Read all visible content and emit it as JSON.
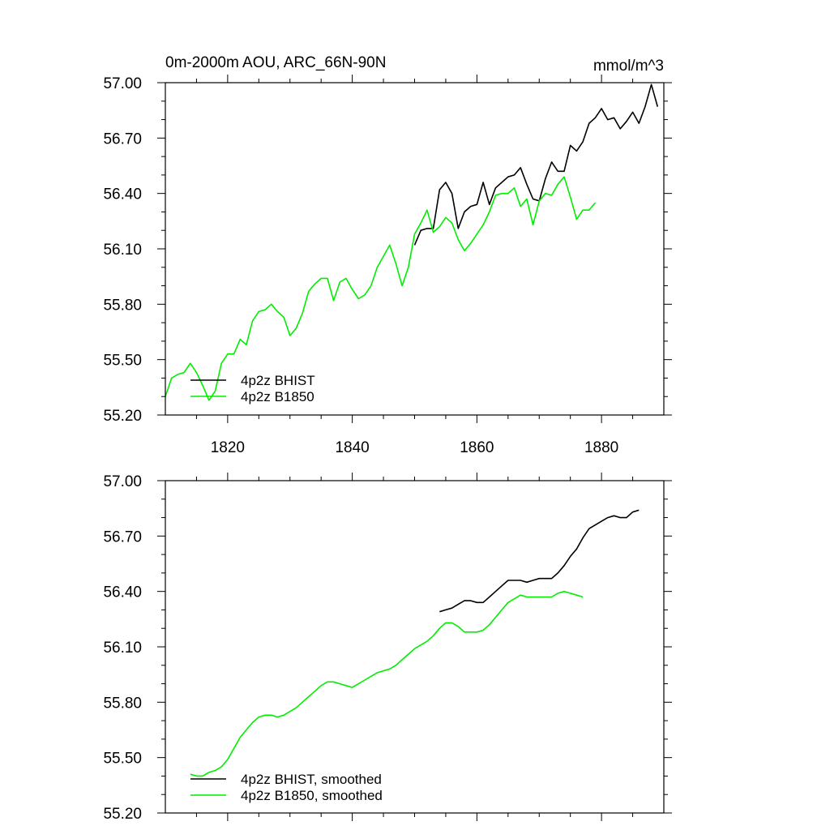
{
  "chart_data": [
    {
      "type": "line",
      "title": "0m-2000m AOU, ARC_66N-90N",
      "units": "mmol/m^3",
      "xlim": [
        1810,
        1890
      ],
      "ylim": [
        55.2,
        57.0
      ],
      "y_ticks": [
        "55.20",
        "55.50",
        "55.80",
        "56.10",
        "56.40",
        "56.70",
        "57.00"
      ],
      "x_ticks": [
        "1820",
        "1840",
        "1860",
        "1880"
      ],
      "legend_position": "bottom-left",
      "series": [
        {
          "name": "4p2z BHIST",
          "color": "#000000",
          "x": [
            1850,
            1851,
            1852,
            1853,
            1854,
            1855,
            1856,
            1857,
            1858,
            1859,
            1860,
            1861,
            1862,
            1863,
            1864,
            1865,
            1866,
            1867,
            1868,
            1869,
            1870,
            1871,
            1872,
            1873,
            1874,
            1875,
            1876,
            1877,
            1878,
            1879,
            1880,
            1881,
            1882,
            1883,
            1884,
            1885,
            1886,
            1887,
            1888,
            1889
          ],
          "y": [
            56.12,
            56.2,
            56.21,
            56.21,
            56.42,
            56.46,
            56.4,
            56.21,
            56.3,
            56.33,
            56.34,
            56.46,
            56.34,
            56.43,
            56.46,
            56.49,
            56.5,
            56.54,
            56.45,
            56.37,
            56.36,
            56.48,
            56.57,
            56.52,
            56.52,
            56.66,
            56.63,
            56.68,
            56.78,
            56.81,
            56.86,
            56.8,
            56.81,
            56.75,
            56.79,
            56.84,
            56.78,
            56.87,
            56.99,
            56.87
          ]
        },
        {
          "name": "4p2z B1850",
          "color": "#00ee00",
          "x": [
            1810,
            1811,
            1812,
            1813,
            1814,
            1815,
            1816,
            1817,
            1818,
            1819,
            1820,
            1821,
            1822,
            1823,
            1824,
            1825,
            1826,
            1827,
            1828,
            1829,
            1830,
            1831,
            1832,
            1833,
            1834,
            1835,
            1836,
            1837,
            1838,
            1839,
            1840,
            1841,
            1842,
            1843,
            1844,
            1845,
            1846,
            1847,
            1848,
            1849,
            1850,
            1851,
            1852,
            1853,
            1854,
            1855,
            1856,
            1857,
            1858,
            1859,
            1860,
            1861,
            1862,
            1863,
            1864,
            1865,
            1866,
            1867,
            1868,
            1869,
            1870,
            1871,
            1872,
            1873,
            1874,
            1875,
            1876,
            1877,
            1878,
            1879
          ],
          "y": [
            55.3,
            55.4,
            55.42,
            55.43,
            55.48,
            55.43,
            55.36,
            55.28,
            55.33,
            55.48,
            55.53,
            55.53,
            55.61,
            55.58,
            55.71,
            55.76,
            55.77,
            55.8,
            55.76,
            55.73,
            55.63,
            55.67,
            55.75,
            55.87,
            55.91,
            55.94,
            55.94,
            55.82,
            55.92,
            55.94,
            55.88,
            55.83,
            55.85,
            55.9,
            56.0,
            56.06,
            56.12,
            56.02,
            55.9,
            56.0,
            56.18,
            56.24,
            56.31,
            56.19,
            56.22,
            56.27,
            56.24,
            56.15,
            56.09,
            56.13,
            56.18,
            56.23,
            56.3,
            56.39,
            56.4,
            56.4,
            56.43,
            56.33,
            56.37,
            56.23,
            56.36,
            56.4,
            56.39,
            56.45,
            56.49,
            56.38,
            56.26,
            56.31,
            56.31,
            56.35
          ]
        }
      ]
    },
    {
      "type": "line",
      "xlim": [
        1810,
        1890
      ],
      "ylim": [
        55.2,
        57.0
      ],
      "y_ticks": [
        "55.20",
        "55.50",
        "55.80",
        "56.10",
        "56.40",
        "56.70",
        "57.00"
      ],
      "legend_position": "bottom-left",
      "series": [
        {
          "name": "4p2z BHIST, smoothed",
          "color": "#000000",
          "x": [
            1854,
            1855,
            1856,
            1857,
            1858,
            1859,
            1860,
            1861,
            1862,
            1863,
            1864,
            1865,
            1866,
            1867,
            1868,
            1869,
            1870,
            1871,
            1872,
            1873,
            1874,
            1875,
            1876,
            1877,
            1878,
            1879,
            1880,
            1881,
            1882,
            1883,
            1884,
            1885,
            1886
          ],
          "y": [
            56.29,
            56.3,
            56.31,
            56.33,
            56.35,
            56.35,
            56.34,
            56.34,
            56.37,
            56.4,
            56.43,
            56.46,
            56.46,
            56.46,
            56.45,
            56.46,
            56.47,
            56.47,
            56.47,
            56.5,
            56.54,
            56.59,
            56.63,
            56.69,
            56.74,
            56.76,
            56.78,
            56.8,
            56.81,
            56.8,
            56.8,
            56.83,
            56.84
          ]
        },
        {
          "name": "4p2z B1850, smoothed",
          "color": "#00ee00",
          "x": [
            1814,
            1815,
            1816,
            1817,
            1818,
            1819,
            1820,
            1821,
            1822,
            1823,
            1824,
            1825,
            1826,
            1827,
            1828,
            1829,
            1830,
            1831,
            1832,
            1833,
            1834,
            1835,
            1836,
            1837,
            1838,
            1839,
            1840,
            1841,
            1842,
            1843,
            1844,
            1845,
            1846,
            1847,
            1848,
            1849,
            1850,
            1851,
            1852,
            1853,
            1854,
            1855,
            1856,
            1857,
            1858,
            1859,
            1860,
            1861,
            1862,
            1863,
            1864,
            1865,
            1866,
            1867,
            1868,
            1869,
            1870,
            1871,
            1872,
            1873,
            1874,
            1875,
            1876,
            1877
          ],
          "y": [
            55.41,
            55.4,
            55.4,
            55.42,
            55.43,
            55.45,
            55.49,
            55.55,
            55.61,
            55.65,
            55.69,
            55.72,
            55.73,
            55.73,
            55.72,
            55.73,
            55.75,
            55.77,
            55.8,
            55.83,
            55.86,
            55.89,
            55.91,
            55.91,
            55.9,
            55.89,
            55.88,
            55.9,
            55.92,
            55.94,
            55.96,
            55.97,
            55.98,
            56.0,
            56.03,
            56.06,
            56.09,
            56.11,
            56.13,
            56.16,
            56.2,
            56.23,
            56.23,
            56.21,
            56.18,
            56.18,
            56.18,
            56.19,
            56.22,
            56.26,
            56.3,
            56.34,
            56.36,
            56.38,
            56.37,
            56.37,
            56.37,
            56.37,
            56.37,
            56.39,
            56.4,
            56.39,
            56.38,
            56.37
          ]
        }
      ]
    }
  ]
}
